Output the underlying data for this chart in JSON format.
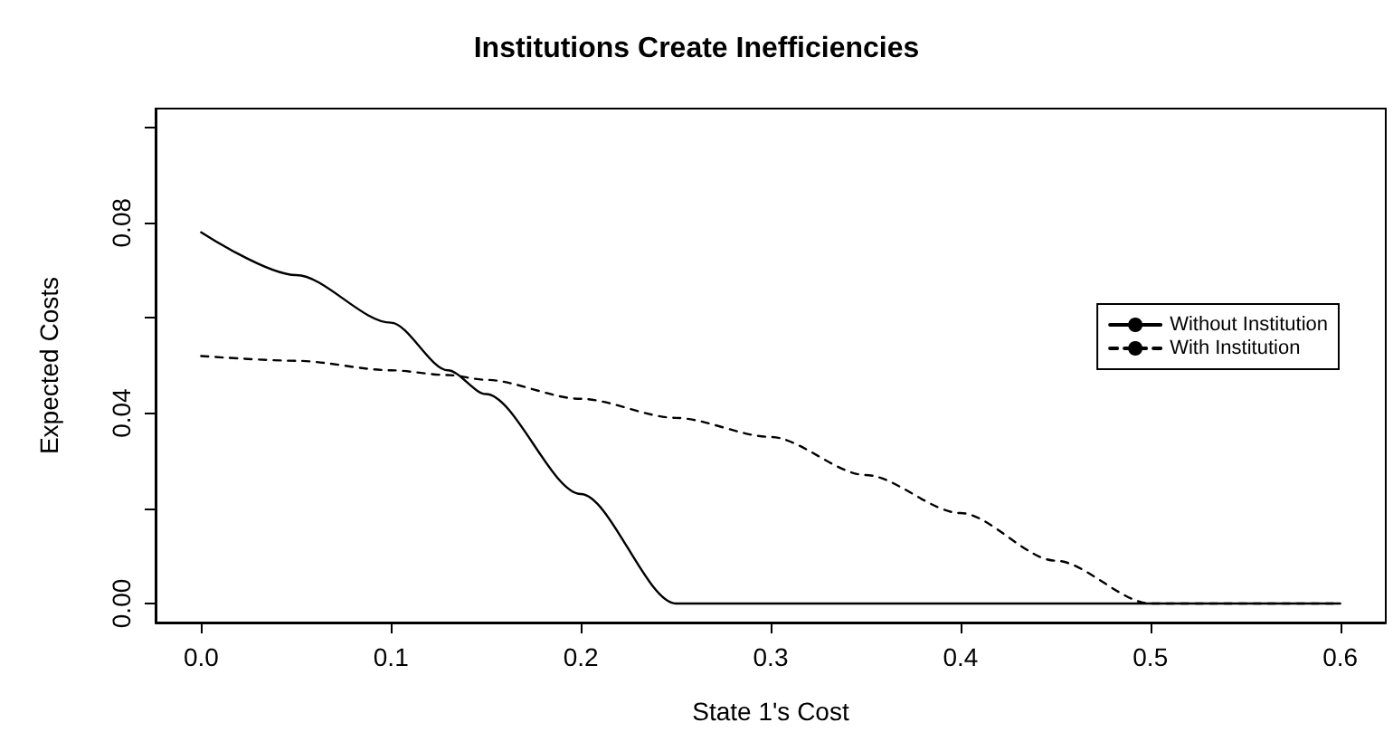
{
  "chart_data": {
    "type": "line",
    "title": "Institutions Create Inefficiencies",
    "xlabel": "State 1's Cost",
    "ylabel": "Expected Costs",
    "x": [
      0,
      0.05,
      0.1,
      0.13,
      0.15,
      0.2,
      0.25,
      0.3,
      0.35,
      0.4,
      0.45,
      0.5,
      0.6
    ],
    "series": [
      {
        "name": "Without Institution",
        "color": "#000000",
        "line_style": "solid",
        "values": [
          0.078,
          0.069,
          0.059,
          0.049,
          0.044,
          0.023,
          0,
          0,
          0,
          0,
          0,
          0,
          0
        ]
      },
      {
        "name": "With Institution",
        "color": "#000000",
        "line_style": "dashed",
        "values": [
          0.052,
          0.051,
          0.049,
          0.048,
          0.047,
          0.043,
          0.039,
          0.035,
          0.027,
          0.019,
          0.009,
          0,
          0
        ]
      }
    ],
    "xlim": [
      -0.024,
      0.624
    ],
    "ylim": [
      -0.004,
      0.104
    ],
    "xticks": [
      {
        "value": 0,
        "label": "0.0"
      },
      0.1,
      0.2,
      0.3,
      0.4,
      0.5,
      0.6
    ],
    "yticks": [
      {
        "value": 0,
        "label": "0.00"
      },
      {
        "value": 0.02,
        "label": null
      },
      {
        "value": 0.04,
        "label": "0.04"
      },
      {
        "value": 0.06,
        "label": null
      },
      {
        "value": 0.08,
        "label": "0.08"
      },
      {
        "value": 0.1,
        "label": null
      }
    ],
    "grid": false,
    "legend": "right",
    "marker": "none"
  }
}
